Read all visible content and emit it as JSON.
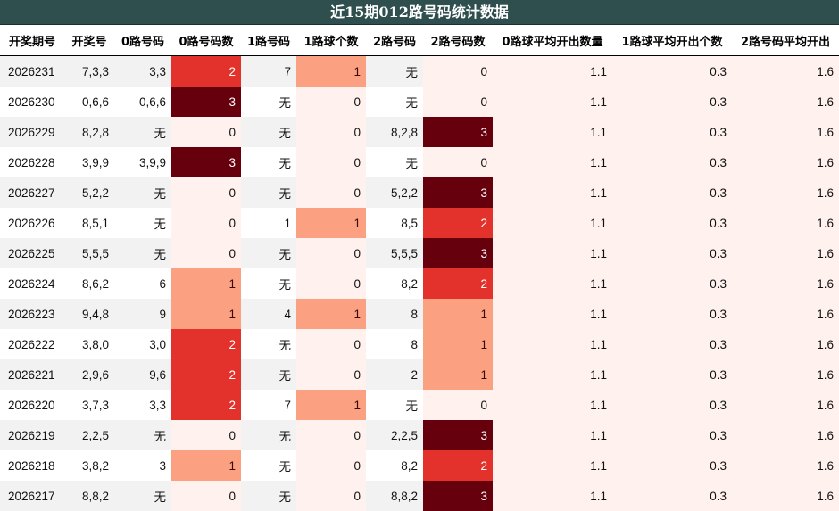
{
  "title": "近15期012路号码统计数据",
  "columns": [
    "开奖期号",
    "开奖号",
    "0路号码",
    "0路号码数",
    "1路号码",
    "1路球个数",
    "2路号码",
    "2路号码数",
    "0路球平均开出数量",
    "1路球平均开出个数",
    "2路号码平均开出"
  ],
  "colors": {
    "title_bg": "#2f4f4f",
    "heat_0": "#fff1ee",
    "heat_1": "#fca082",
    "heat_2": "#e3322b",
    "heat_3": "#67000d"
  },
  "rows": [
    {
      "issue": "2026231",
      "number": "7,3,3",
      "r0": "3,3",
      "r0n": "2",
      "r1": "7",
      "r1n": "1",
      "r2": "无",
      "r2n": "0",
      "a0": "1.1",
      "a1": "0.3",
      "a2": "1.6"
    },
    {
      "issue": "2026230",
      "number": "0,6,6",
      "r0": "0,6,6",
      "r0n": "3",
      "r1": "无",
      "r1n": "0",
      "r2": "无",
      "r2n": "0",
      "a0": "1.1",
      "a1": "0.3",
      "a2": "1.6"
    },
    {
      "issue": "2026229",
      "number": "8,2,8",
      "r0": "无",
      "r0n": "0",
      "r1": "无",
      "r1n": "0",
      "r2": "8,2,8",
      "r2n": "3",
      "a0": "1.1",
      "a1": "0.3",
      "a2": "1.6"
    },
    {
      "issue": "2026228",
      "number": "3,9,9",
      "r0": "3,9,9",
      "r0n": "3",
      "r1": "无",
      "r1n": "0",
      "r2": "无",
      "r2n": "0",
      "a0": "1.1",
      "a1": "0.3",
      "a2": "1.6"
    },
    {
      "issue": "2026227",
      "number": "5,2,2",
      "r0": "无",
      "r0n": "0",
      "r1": "无",
      "r1n": "0",
      "r2": "5,2,2",
      "r2n": "3",
      "a0": "1.1",
      "a1": "0.3",
      "a2": "1.6"
    },
    {
      "issue": "2026226",
      "number": "8,5,1",
      "r0": "无",
      "r0n": "0",
      "r1": "1",
      "r1n": "1",
      "r2": "8,5",
      "r2n": "2",
      "a0": "1.1",
      "a1": "0.3",
      "a2": "1.6"
    },
    {
      "issue": "2026225",
      "number": "5,5,5",
      "r0": "无",
      "r0n": "0",
      "r1": "无",
      "r1n": "0",
      "r2": "5,5,5",
      "r2n": "3",
      "a0": "1.1",
      "a1": "0.3",
      "a2": "1.6"
    },
    {
      "issue": "2026224",
      "number": "8,6,2",
      "r0": "6",
      "r0n": "1",
      "r1": "无",
      "r1n": "0",
      "r2": "8,2",
      "r2n": "2",
      "a0": "1.1",
      "a1": "0.3",
      "a2": "1.6"
    },
    {
      "issue": "2026223",
      "number": "9,4,8",
      "r0": "9",
      "r0n": "1",
      "r1": "4",
      "r1n": "1",
      "r2": "8",
      "r2n": "1",
      "a0": "1.1",
      "a1": "0.3",
      "a2": "1.6"
    },
    {
      "issue": "2026222",
      "number": "3,8,0",
      "r0": "3,0",
      "r0n": "2",
      "r1": "无",
      "r1n": "0",
      "r2": "8",
      "r2n": "1",
      "a0": "1.1",
      "a1": "0.3",
      "a2": "1.6"
    },
    {
      "issue": "2026221",
      "number": "2,9,6",
      "r0": "9,6",
      "r0n": "2",
      "r1": "无",
      "r1n": "0",
      "r2": "2",
      "r2n": "1",
      "a0": "1.1",
      "a1": "0.3",
      "a2": "1.6"
    },
    {
      "issue": "2026220",
      "number": "3,7,3",
      "r0": "3,3",
      "r0n": "2",
      "r1": "7",
      "r1n": "1",
      "r2": "无",
      "r2n": "0",
      "a0": "1.1",
      "a1": "0.3",
      "a2": "1.6"
    },
    {
      "issue": "2026219",
      "number": "2,2,5",
      "r0": "无",
      "r0n": "0",
      "r1": "无",
      "r1n": "0",
      "r2": "2,2,5",
      "r2n": "3",
      "a0": "1.1",
      "a1": "0.3",
      "a2": "1.6"
    },
    {
      "issue": "2026218",
      "number": "3,8,2",
      "r0": "3",
      "r0n": "1",
      "r1": "无",
      "r1n": "0",
      "r2": "8,2",
      "r2n": "2",
      "a0": "1.1",
      "a1": "0.3",
      "a2": "1.6"
    },
    {
      "issue": "2026217",
      "number": "8,8,2",
      "r0": "无",
      "r0n": "0",
      "r1": "无",
      "r1n": "0",
      "r2": "8,8,2",
      "r2n": "3",
      "a0": "1.1",
      "a1": "0.3",
      "a2": "1.6"
    }
  ]
}
